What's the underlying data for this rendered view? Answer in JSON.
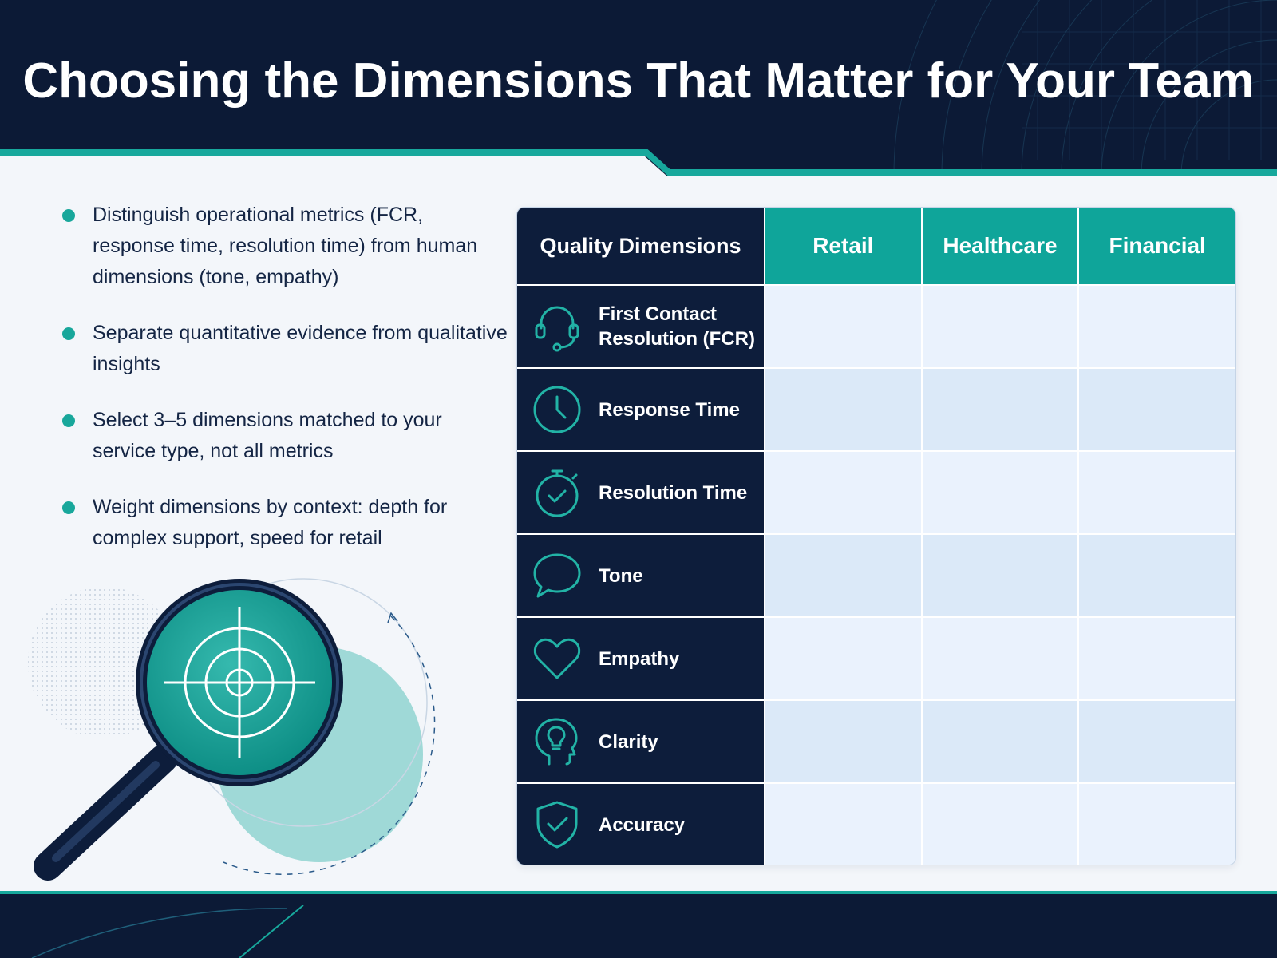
{
  "title": "Choosing the Dimensions That Matter for Your Team",
  "bullets": [
    "Distinguish operational metrics (FCR, response time, resolution time) from human dimensions (tone, empathy)",
    "Separate quantitative evidence from qualitative insights",
    "Select 3–5 dimensions matched to your service type, not all metrics",
    "Weight dimensions by context: depth for complex support, speed for retail"
  ],
  "table": {
    "header": "Quality Dimensions",
    "columns": [
      "Retail",
      "Healthcare",
      "Financial"
    ],
    "rows": [
      {
        "label": "First Contact Resolution (FCR)",
        "icon": "headset-icon"
      },
      {
        "label": "Response Time",
        "icon": "clock-icon"
      },
      {
        "label": "Resolution Time",
        "icon": "stopwatch-icon"
      },
      {
        "label": "Tone",
        "icon": "speech-bubble-icon"
      },
      {
        "label": "Empathy",
        "icon": "heart-icon"
      },
      {
        "label": "Clarity",
        "icon": "head-lightbulb-icon"
      },
      {
        "label": "Accuracy",
        "icon": "shield-check-icon"
      }
    ]
  },
  "colors": {
    "navy": "#0d1d3b",
    "teal": "#0fa59a",
    "accent_line": "#18a79b",
    "cell_light": "#eaf2fd",
    "cell_alt": "#dbe9f8"
  }
}
